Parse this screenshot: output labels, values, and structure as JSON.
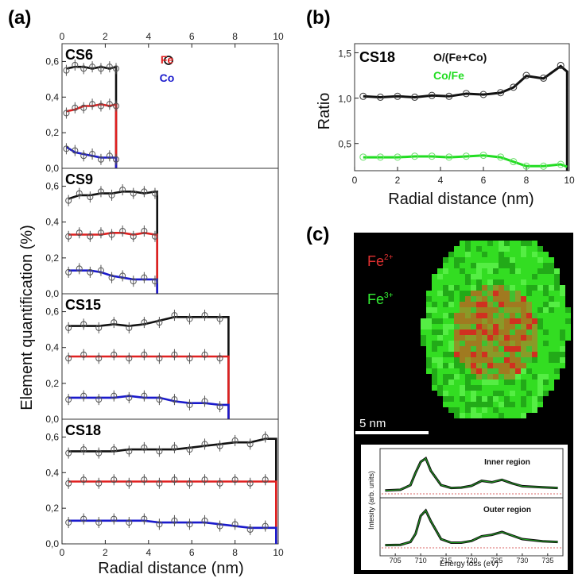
{
  "colors": {
    "o_ratio": "#111111",
    "fe": "#e02020",
    "co": "#1a1acc",
    "co_fe": "#22dd22",
    "fe2": "#e03030",
    "fe3": "#33ee33"
  },
  "panel_a": {
    "label": "(a)",
    "ylabel": "Element quantification (%)",
    "xlabel": "Radial distance (nm)",
    "top_xticks": [
      "0",
      "2",
      "4",
      "6",
      "8",
      "10"
    ],
    "bottom_xticks": [
      "0",
      "2",
      "4",
      "6",
      "8",
      "10"
    ],
    "yticks": [
      "0,0",
      "0,2",
      "0,4",
      "0,6"
    ],
    "legend": {
      "o": "O",
      "fe": "Fe",
      "co": "Co"
    }
  },
  "panel_b": {
    "label": "(b)",
    "sample": "CS18",
    "ylabel": "Ratio",
    "xlabel": "Radial distance (nm)",
    "legend_o": "O/(Fe+Co)",
    "legend_cofe": "Co/Fe",
    "xticks": [
      "0",
      "2",
      "4",
      "6",
      "8",
      "10"
    ],
    "yticks": [
      "0,5",
      "1,0",
      "1,5"
    ]
  },
  "panel_c": {
    "label": "(c)",
    "fe2_label": "Fe",
    "fe2_sup": "2+",
    "fe3_label": "Fe",
    "fe3_sup": "3+",
    "scalebar": "5 nm",
    "inset_ylabel": "Intesity (arb. units)",
    "inset_xlabel": "Energy loss (eV)",
    "inner_label": "Inner region",
    "outer_label": "Outer region",
    "inset_xticks": [
      "705",
      "710",
      "715",
      "720",
      "725",
      "730",
      "735"
    ]
  },
  "chart_data": [
    {
      "type": "line",
      "title": "CS6",
      "xlim": [
        0,
        10
      ],
      "ylim": [
        0,
        0.7
      ],
      "series": [
        {
          "name": "O",
          "x": [
            0.2,
            0.6,
            1.0,
            1.4,
            1.8,
            2.2,
            2.5
          ],
          "values": [
            0.56,
            0.57,
            0.57,
            0.56,
            0.57,
            0.56,
            0.57
          ]
        },
        {
          "name": "Fe",
          "x": [
            0.2,
            0.6,
            1.0,
            1.4,
            1.8,
            2.2,
            2.5
          ],
          "values": [
            0.32,
            0.33,
            0.35,
            0.35,
            0.36,
            0.35,
            0.36
          ]
        },
        {
          "name": "Co",
          "x": [
            0.2,
            0.6,
            1.0,
            1.4,
            1.8,
            2.2,
            2.5
          ],
          "values": [
            0.12,
            0.09,
            0.08,
            0.07,
            0.06,
            0.06,
            0.06
          ]
        }
      ],
      "edge": 2.5
    },
    {
      "type": "line",
      "title": "CS9",
      "xlim": [
        0,
        10
      ],
      "ylim": [
        0,
        0.7
      ],
      "series": [
        {
          "name": "O",
          "x": [
            0.3,
            0.8,
            1.3,
            1.8,
            2.3,
            2.8,
            3.3,
            3.8,
            4.3
          ],
          "values": [
            0.53,
            0.55,
            0.55,
            0.56,
            0.56,
            0.57,
            0.57,
            0.56,
            0.57
          ]
        },
        {
          "name": "Fe",
          "x": [
            0.3,
            0.8,
            1.3,
            1.8,
            2.3,
            2.8,
            3.3,
            3.8,
            4.3
          ],
          "values": [
            0.33,
            0.33,
            0.33,
            0.33,
            0.34,
            0.34,
            0.33,
            0.34,
            0.33
          ]
        },
        {
          "name": "Co",
          "x": [
            0.3,
            0.8,
            1.3,
            1.8,
            2.3,
            2.8,
            3.3,
            3.8,
            4.3
          ],
          "values": [
            0.13,
            0.13,
            0.13,
            0.12,
            0.1,
            0.09,
            0.08,
            0.08,
            0.08
          ]
        }
      ],
      "edge": 4.4
    },
    {
      "type": "line",
      "title": "CS15",
      "xlim": [
        0,
        10
      ],
      "ylim": [
        0,
        0.7
      ],
      "series": [
        {
          "name": "O",
          "x": [
            0.3,
            1.0,
            1.7,
            2.4,
            3.1,
            3.8,
            4.5,
            5.2,
            5.9,
            6.6,
            7.3
          ],
          "values": [
            0.52,
            0.52,
            0.52,
            0.53,
            0.52,
            0.53,
            0.55,
            0.57,
            0.57,
            0.57,
            0.57
          ]
        },
        {
          "name": "Fe",
          "x": [
            0.3,
            1.0,
            1.7,
            2.4,
            3.1,
            3.8,
            4.5,
            5.2,
            5.9,
            6.6,
            7.3
          ],
          "values": [
            0.35,
            0.35,
            0.35,
            0.35,
            0.35,
            0.35,
            0.35,
            0.35,
            0.35,
            0.35,
            0.35
          ]
        },
        {
          "name": "Co",
          "x": [
            0.3,
            1.0,
            1.7,
            2.4,
            3.1,
            3.8,
            4.5,
            5.2,
            5.9,
            6.6,
            7.3
          ],
          "values": [
            0.12,
            0.12,
            0.12,
            0.12,
            0.13,
            0.12,
            0.12,
            0.1,
            0.09,
            0.09,
            0.08
          ]
        }
      ],
      "edge": 7.7
    },
    {
      "type": "line",
      "title": "CS18",
      "xlim": [
        0,
        10
      ],
      "ylim": [
        0,
        0.7
      ],
      "series": [
        {
          "name": "O",
          "x": [
            0.3,
            1.0,
            1.7,
            2.4,
            3.1,
            3.8,
            4.5,
            5.2,
            5.9,
            6.6,
            7.3,
            8.0,
            8.7,
            9.4
          ],
          "values": [
            0.52,
            0.52,
            0.52,
            0.52,
            0.53,
            0.53,
            0.53,
            0.53,
            0.54,
            0.55,
            0.56,
            0.57,
            0.57,
            0.59
          ]
        },
        {
          "name": "Fe",
          "x": [
            0.3,
            1.0,
            1.7,
            2.4,
            3.1,
            3.8,
            4.5,
            5.2,
            5.9,
            6.6,
            7.3,
            8.0,
            8.7,
            9.4
          ],
          "values": [
            0.35,
            0.35,
            0.35,
            0.35,
            0.35,
            0.35,
            0.35,
            0.35,
            0.35,
            0.35,
            0.35,
            0.35,
            0.35,
            0.35
          ]
        },
        {
          "name": "Co",
          "x": [
            0.3,
            1.0,
            1.7,
            2.4,
            3.1,
            3.8,
            4.5,
            5.2,
            5.9,
            6.6,
            7.3,
            8.0,
            8.7,
            9.4
          ],
          "values": [
            0.13,
            0.13,
            0.13,
            0.13,
            0.13,
            0.13,
            0.12,
            0.12,
            0.12,
            0.12,
            0.11,
            0.1,
            0.09,
            0.09
          ]
        }
      ],
      "edge": 9.9
    },
    {
      "type": "line",
      "title": "CS18",
      "xlim": [
        0,
        10
      ],
      "ylim": [
        0.2,
        1.6
      ],
      "series": [
        {
          "name": "O/(Fe+Co)",
          "x": [
            0.4,
            1.2,
            2.0,
            2.8,
            3.6,
            4.4,
            5.2,
            6.0,
            6.8,
            7.4,
            8.0,
            8.8,
            9.6
          ],
          "values": [
            1.02,
            1.01,
            1.02,
            1.01,
            1.03,
            1.02,
            1.05,
            1.04,
            1.06,
            1.12,
            1.25,
            1.22,
            1.36
          ]
        },
        {
          "name": "Co/Fe",
          "x": [
            0.4,
            1.2,
            2.0,
            2.8,
            3.6,
            4.4,
            5.2,
            6.0,
            6.8,
            7.4,
            8.0,
            8.8,
            9.6
          ],
          "values": [
            0.35,
            0.35,
            0.35,
            0.36,
            0.36,
            0.35,
            0.36,
            0.37,
            0.35,
            0.3,
            0.25,
            0.25,
            0.27
          ]
        }
      ]
    },
    {
      "type": "line",
      "title": "",
      "xlabel": "Energy loss (eV)",
      "ylabel": "Intesity (arb. units)",
      "xlim": [
        702,
        738
      ],
      "series": [
        {
          "name": "Inner region",
          "x": [
            703,
            706,
            708,
            709,
            710,
            711,
            712,
            714,
            716,
            718,
            720,
            722,
            724,
            726,
            728,
            730,
            734,
            737
          ],
          "values": [
            0.05,
            0.07,
            0.2,
            0.55,
            0.85,
            0.95,
            0.6,
            0.2,
            0.12,
            0.13,
            0.18,
            0.32,
            0.28,
            0.35,
            0.25,
            0.17,
            0.14,
            0.12
          ]
        },
        {
          "name": "Outer region",
          "x": [
            703,
            706,
            708,
            709,
            710,
            711,
            712,
            714,
            716,
            718,
            720,
            722,
            724,
            726,
            728,
            730,
            734,
            737
          ],
          "values": [
            0.03,
            0.04,
            0.12,
            0.35,
            0.85,
            1.0,
            0.7,
            0.2,
            0.1,
            0.1,
            0.15,
            0.28,
            0.32,
            0.4,
            0.3,
            0.2,
            0.14,
            0.12
          ]
        }
      ]
    }
  ]
}
